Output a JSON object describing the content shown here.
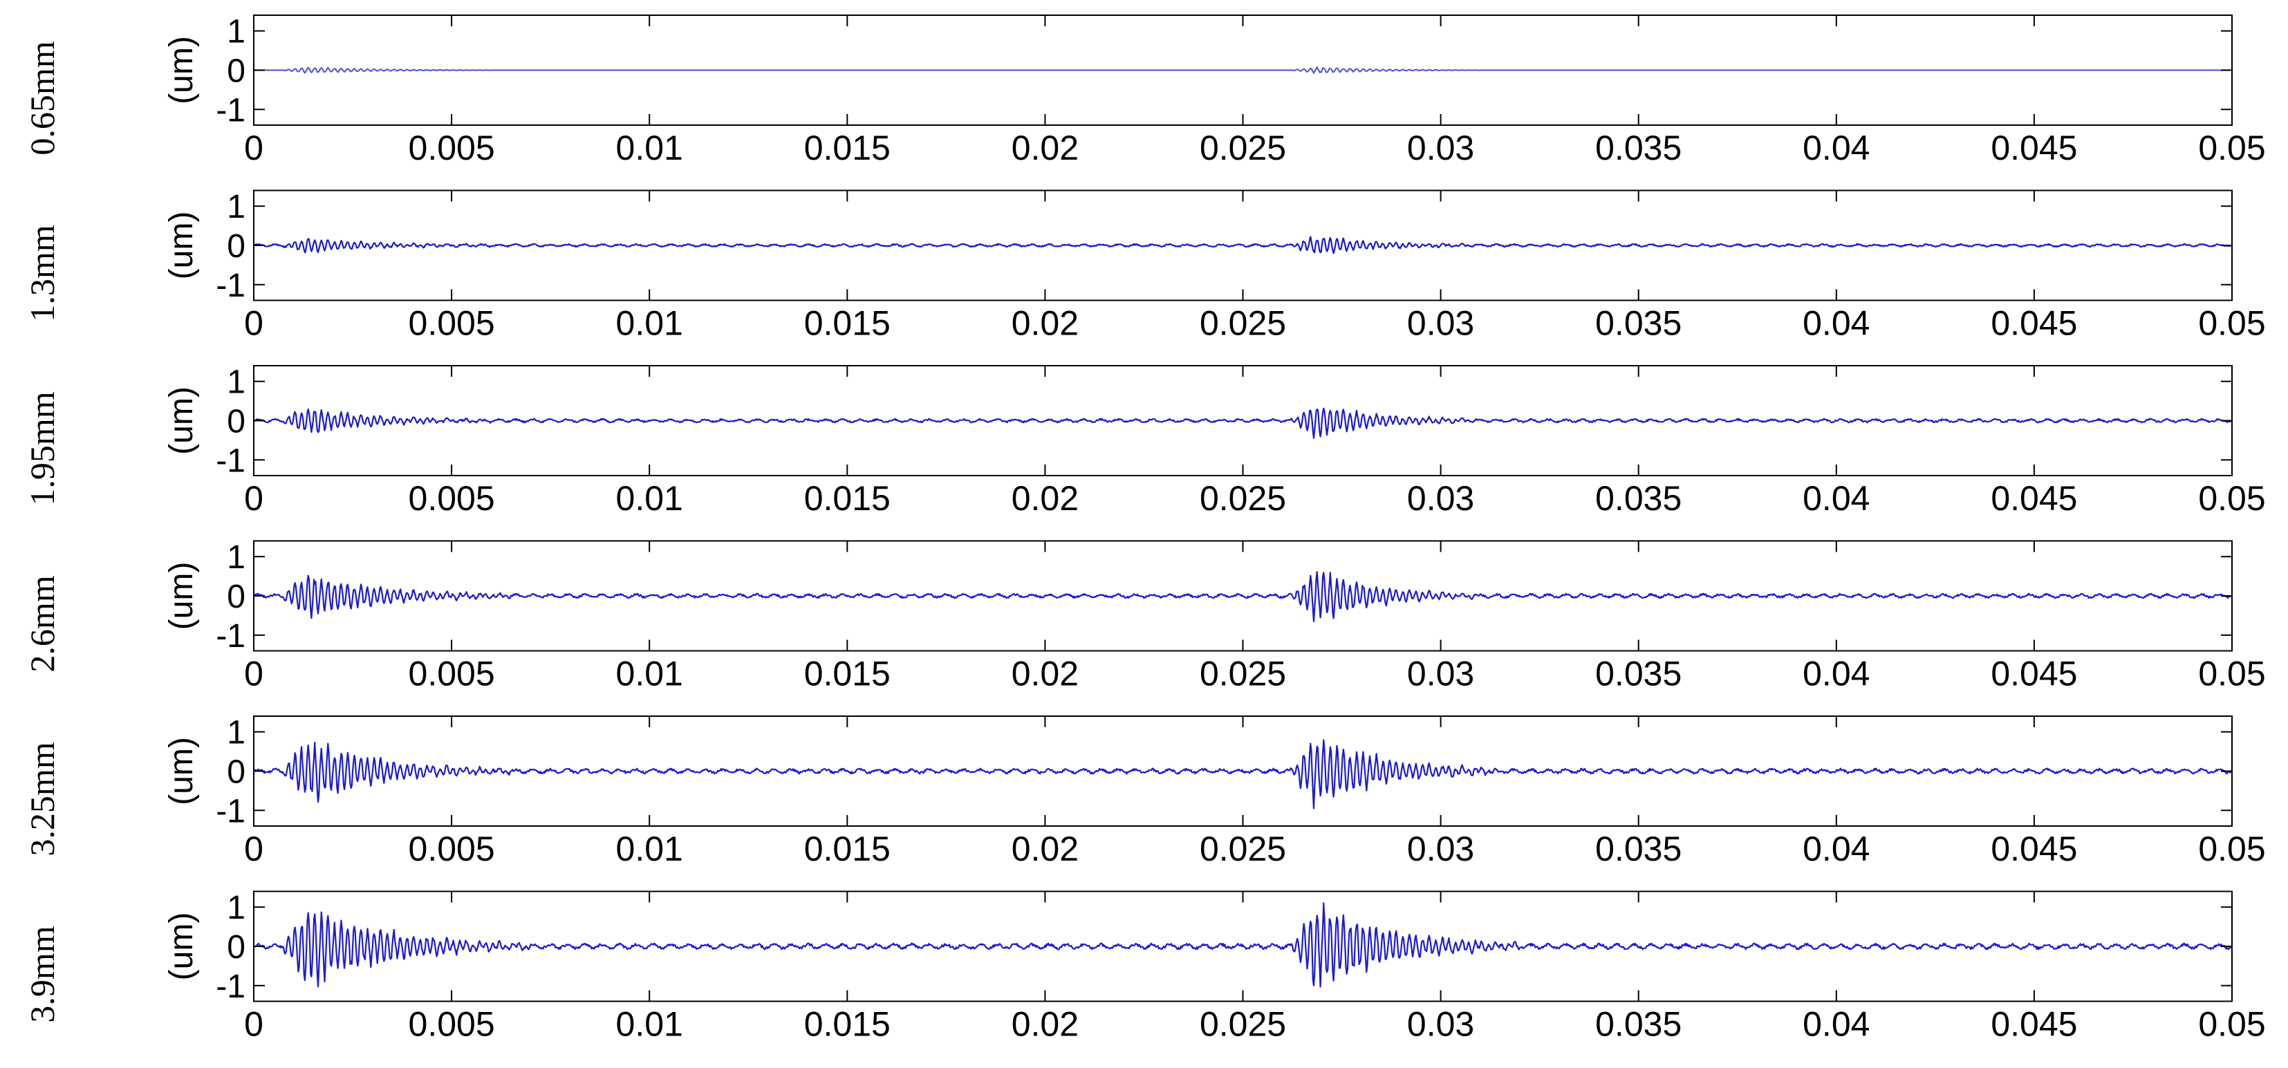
{
  "chart_data": [
    {
      "type": "line",
      "row_label": "0.65mm",
      "ylabel": "(um)",
      "xlim": [
        0,
        0.05
      ],
      "ylim": [
        -1.4,
        1.4
      ],
      "xticks": [
        "0",
        "0.005",
        "0.01",
        "0.015",
        "0.02",
        "0.025",
        "0.03",
        "0.035",
        "0.04",
        "0.045",
        "0.05"
      ],
      "yticks": [
        "1",
        "0",
        "-1"
      ],
      "ytick_values": [
        1,
        0,
        -1
      ],
      "grid": false,
      "line_color": "#5b5bd6",
      "bursts": [
        {
          "center": 0.0015,
          "peak_amplitude": 0.08,
          "decay_end": 0.006
        },
        {
          "center": 0.027,
          "peak_amplitude": 0.08,
          "decay_end": 0.031
        }
      ],
      "baseline_noise_amplitude": 0.0
    },
    {
      "type": "line",
      "row_label": "1.3mm",
      "ylabel": "(um)",
      "xlim": [
        0,
        0.05
      ],
      "ylim": [
        -1.4,
        1.4
      ],
      "xticks": [
        "0",
        "0.005",
        "0.01",
        "0.015",
        "0.02",
        "0.025",
        "0.03",
        "0.035",
        "0.04",
        "0.045",
        "0.05"
      ],
      "yticks": [
        "1",
        "0",
        "-1"
      ],
      "ytick_values": [
        1,
        0,
        -1
      ],
      "grid": false,
      "line_color": "#1c1cd0",
      "bursts": [
        {
          "center": 0.0015,
          "peak_amplitude": 0.2,
          "decay_end": 0.006
        },
        {
          "center": 0.027,
          "peak_amplitude": 0.25,
          "decay_end": 0.031
        }
      ],
      "baseline_noise_amplitude": 0.04
    },
    {
      "type": "line",
      "row_label": "1.95mm",
      "ylabel": "(um)",
      "xlim": [
        0,
        0.05
      ],
      "ylim": [
        -1.4,
        1.4
      ],
      "xticks": [
        "0",
        "0.005",
        "0.01",
        "0.015",
        "0.02",
        "0.025",
        "0.03",
        "0.035",
        "0.04",
        "0.045",
        "0.05"
      ],
      "yticks": [
        "1",
        "0",
        "-1"
      ],
      "ytick_values": [
        1,
        0,
        -1
      ],
      "grid": false,
      "line_color": "#1c1cd0",
      "bursts": [
        {
          "center": 0.0015,
          "peak_amplitude": 0.35,
          "decay_end": 0.006
        },
        {
          "center": 0.027,
          "peak_amplitude": 0.45,
          "decay_end": 0.031
        }
      ],
      "baseline_noise_amplitude": 0.05
    },
    {
      "type": "line",
      "row_label": "2.6mm",
      "ylabel": "(um)",
      "xlim": [
        0,
        0.05
      ],
      "ylim": [
        -1.4,
        1.4
      ],
      "xticks": [
        "0",
        "0.005",
        "0.01",
        "0.015",
        "0.02",
        "0.025",
        "0.03",
        "0.035",
        "0.04",
        "0.045",
        "0.05"
      ],
      "yticks": [
        "1",
        "0",
        "-1"
      ],
      "ytick_values": [
        1,
        0,
        -1
      ],
      "grid": false,
      "line_color": "#1c1cd0",
      "bursts": [
        {
          "center": 0.0015,
          "peak_amplitude": 0.6,
          "decay_end": 0.0065
        },
        {
          "center": 0.027,
          "peak_amplitude": 0.7,
          "decay_end": 0.031
        }
      ],
      "baseline_noise_amplitude": 0.06
    },
    {
      "type": "line",
      "row_label": "3.25mm",
      "ylabel": "(um)",
      "xlim": [
        0,
        0.05
      ],
      "ylim": [
        -1.4,
        1.4
      ],
      "xticks": [
        "0",
        "0.005",
        "0.01",
        "0.015",
        "0.02",
        "0.025",
        "0.03",
        "0.035",
        "0.04",
        "0.045",
        "0.05"
      ],
      "yticks": [
        "1",
        "0",
        "-1"
      ],
      "ytick_values": [
        1,
        0,
        -1
      ],
      "grid": false,
      "line_color": "#1c1cd0",
      "bursts": [
        {
          "center": 0.0015,
          "peak_amplitude": 0.85,
          "decay_end": 0.0065
        },
        {
          "center": 0.027,
          "peak_amplitude": 0.95,
          "decay_end": 0.0315
        }
      ],
      "baseline_noise_amplitude": 0.07
    },
    {
      "type": "line",
      "row_label": "3.9mm",
      "ylabel": "(um)",
      "xlim": [
        0,
        0.05
      ],
      "ylim": [
        -1.4,
        1.4
      ],
      "xticks": [
        "0",
        "0.005",
        "0.01",
        "0.015",
        "0.02",
        "0.025",
        "0.03",
        "0.035",
        "0.04",
        "0.045",
        "0.05"
      ],
      "yticks": [
        "1",
        "0",
        "-1"
      ],
      "ytick_values": [
        1,
        0,
        -1
      ],
      "grid": false,
      "line_color": "#1c1cd0",
      "bursts": [
        {
          "center": 0.0015,
          "peak_amplitude": 1.1,
          "decay_end": 0.007
        },
        {
          "center": 0.027,
          "peak_amplitude": 1.2,
          "decay_end": 0.032
        }
      ],
      "baseline_noise_amplitude": 0.08
    }
  ]
}
